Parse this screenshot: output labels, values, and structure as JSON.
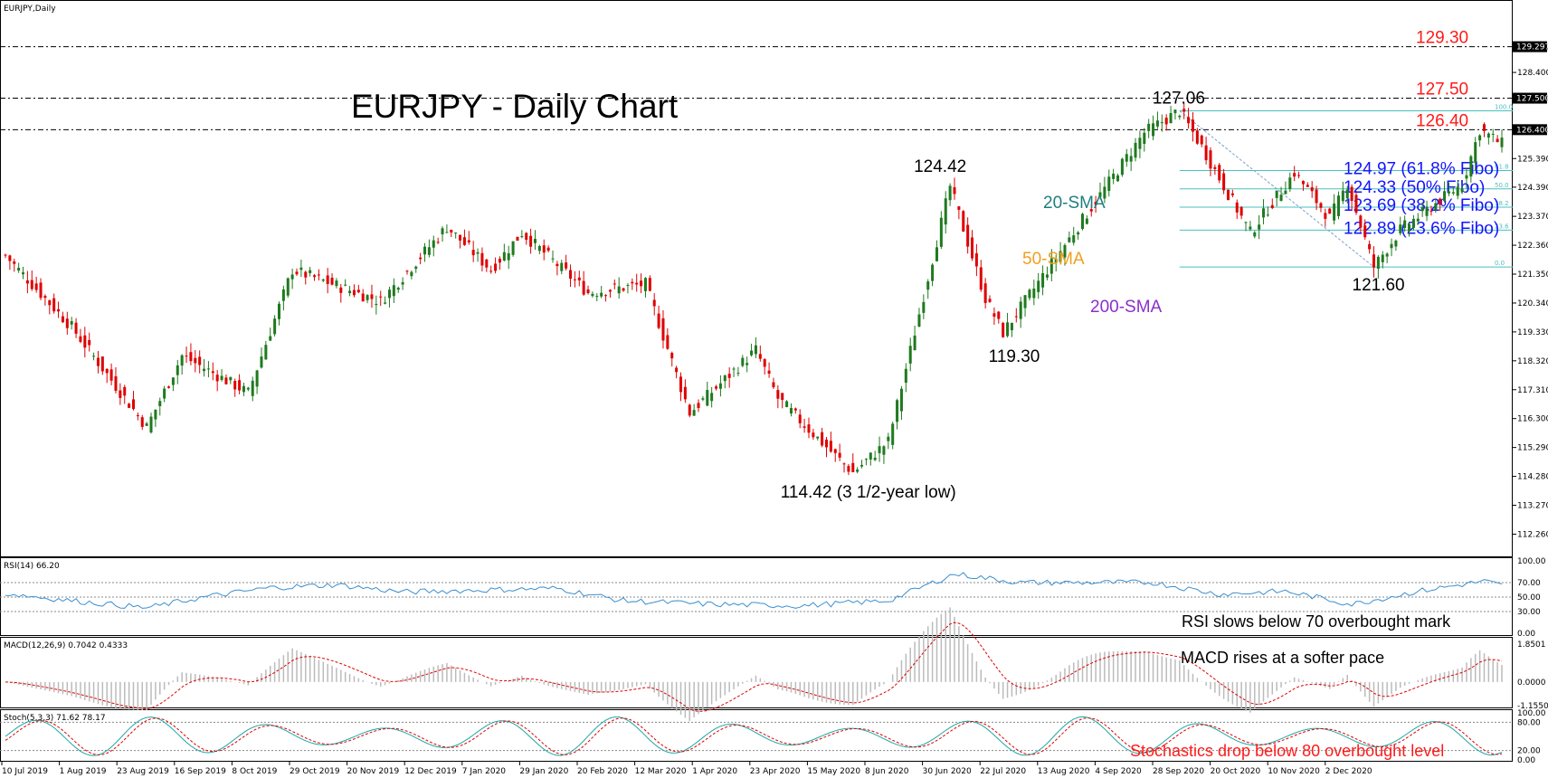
{
  "header": {
    "symbol_label": "EURJPY,Daily"
  },
  "chart_data": {
    "type": "candlestick",
    "title": "EURJPY - Daily Chart",
    "y_range": [
      111.8,
      130.3
    ],
    "x_labels": [
      "10 Jul 2019",
      "1 Aug 2019",
      "23 Aug 2019",
      "16 Sep 2019",
      "8 Oct 2019",
      "29 Oct 2019",
      "20 Nov 2019",
      "12 Dec 2019",
      "7 Jan 2020",
      "29 Jan 2020",
      "20 Feb 2020",
      "12 Mar 2020",
      "1 Apr 2020",
      "23 Apr 2020",
      "15 May 2020",
      "8 Jun 2020",
      "30 Jun 2020",
      "22 Jul 2020",
      "13 Aug 2020",
      "4 Sep 2020",
      "28 Sep 2020",
      "20 Oct 2020",
      "10 Nov 2020",
      "2 Dec 2020"
    ],
    "y_ticks": [
      "129.297",
      "128.400",
      "127.500",
      "126.400",
      "125.390",
      "124.390",
      "123.370",
      "122.360",
      "121.350",
      "120.340",
      "119.330",
      "118.320",
      "117.310",
      "116.300",
      "115.290",
      "114.280",
      "113.270",
      "112.260"
    ],
    "close_series": {
      "name": "EURJPY",
      "points": [
        [
          0,
          122.0
        ],
        [
          15,
          119.5
        ],
        [
          32,
          116.0
        ],
        [
          40,
          118.5
        ],
        [
          55,
          117.2
        ],
        [
          65,
          121.5
        ],
        [
          85,
          120.4
        ],
        [
          100,
          123.0
        ],
        [
          110,
          121.5
        ],
        [
          117,
          122.8
        ],
        [
          132,
          120.7
        ],
        [
          145,
          121.0
        ],
        [
          155,
          116.5
        ],
        [
          170,
          118.7
        ],
        [
          175,
          117.0
        ],
        [
          188,
          115.0
        ],
        [
          192,
          114.42
        ],
        [
          200,
          115.5
        ],
        [
          214,
          124.42
        ],
        [
          222,
          120.5
        ],
        [
          226,
          119.3
        ],
        [
          236,
          121.5
        ],
        [
          258,
          126.3
        ],
        [
          266,
          127.06
        ],
        [
          271,
          125.8
        ],
        [
          282,
          122.8
        ],
        [
          292,
          124.9
        ],
        [
          300,
          123.3
        ],
        [
          304,
          124.5
        ],
        [
          310,
          121.6
        ],
        [
          316,
          122.9
        ],
        [
          330,
          124.5
        ],
        [
          334,
          126.4
        ],
        [
          339,
          125.9
        ]
      ]
    },
    "key_levels": [
      {
        "label": "129.30",
        "value": 129.3,
        "tick": "129.297"
      },
      {
        "label": "127.50",
        "value": 127.5,
        "tick": "127.500"
      },
      {
        "label": "126.40",
        "value": 126.4,
        "tick": "126.400"
      }
    ],
    "annotations": [
      {
        "label": "127.06",
        "x": 266,
        "y": 127.06
      },
      {
        "label": "124.42",
        "x": 214,
        "y": 124.42
      },
      {
        "label": "119.30",
        "x": 226,
        "y": 119.3
      },
      {
        "label": "121.60",
        "x": 310,
        "y": 121.6
      },
      {
        "label": "114.42 (3 1/2-year low)",
        "x": 192,
        "y": 114.42
      }
    ],
    "fibonacci": {
      "high": 127.06,
      "low": 121.6,
      "levels": [
        {
          "ratio": "100.0",
          "value": 127.06,
          "label": ""
        },
        {
          "ratio": "61.8",
          "value": 124.97,
          "label": "124.97 (61.8% Fibo)"
        },
        {
          "ratio": "50.0",
          "value": 124.33,
          "label": "124.33 (50% Fibo)"
        },
        {
          "ratio": "38.2",
          "value": 123.69,
          "label": "123.69 (38.2% Fibo)"
        },
        {
          "ratio": "23.6",
          "value": 122.89,
          "label": "122.89 (23.6% Fibo)"
        },
        {
          "ratio": "0.0",
          "value": 121.6,
          "label": ""
        }
      ]
    },
    "moving_averages": [
      {
        "name": "20-SMA",
        "color": "#1e7f7f"
      },
      {
        "name": "50-SMA",
        "color": "#f0a020"
      },
      {
        "name": "200-SMA",
        "color": "#8b2fc9"
      }
    ]
  },
  "rsi": {
    "label": "RSI(14) 66.20",
    "ticks": [
      "100.00",
      "70.00",
      "50.00",
      "30.00",
      "0.00"
    ],
    "annotation": "RSI slows below 70 overbought mark",
    "values": [
      [
        0,
        55
      ],
      [
        15,
        45
      ],
      [
        32,
        35
      ],
      [
        45,
        50
      ],
      [
        60,
        63
      ],
      [
        75,
        67
      ],
      [
        90,
        57
      ],
      [
        110,
        60
      ],
      [
        125,
        62
      ],
      [
        140,
        45
      ],
      [
        160,
        40
      ],
      [
        180,
        38
      ],
      [
        200,
        45
      ],
      [
        215,
        82
      ],
      [
        230,
        70
      ],
      [
        260,
        70
      ],
      [
        275,
        54
      ],
      [
        290,
        58
      ],
      [
        305,
        40
      ],
      [
        320,
        58
      ],
      [
        335,
        72
      ],
      [
        339,
        66
      ]
    ]
  },
  "macd": {
    "label": "MACD(12,26,9) 0.7042 0.4333",
    "ticks": [
      "1.8501",
      "0.0000",
      "-1.1550"
    ],
    "annotation": "MACD rises at a softer pace"
  },
  "stoch": {
    "label": "Stoch(5,3,3) 71.62 78.17",
    "ticks": [
      "100.00",
      "80.00",
      "20.00",
      "0.00"
    ],
    "annotation": "Stochastics drop below 80 overbought level"
  },
  "colors": {
    "bull_candle": "#1f7a1f",
    "bear_candle": "#e00000",
    "key_level_text": "#ff1a1a",
    "fibo_text": "#1414ff",
    "rsi_line": "#3a8fd0",
    "macd_hist": "#bbbbbb",
    "macd_signal": "#e00000",
    "stoch_main": "#1ea7a7",
    "stoch_signal": "#e00000"
  }
}
